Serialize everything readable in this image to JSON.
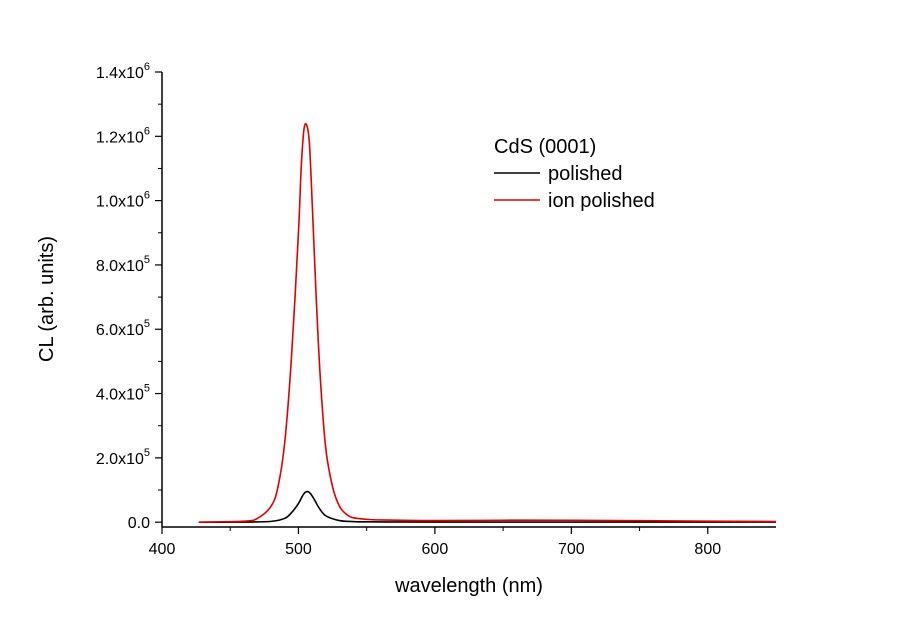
{
  "chart_data": {
    "type": "line",
    "title": "",
    "xlabel": "wavelength (nm)",
    "ylabel": "CL (arb. units)",
    "xlim": [
      400,
      850
    ],
    "ylim": [
      -15000,
      1400000
    ],
    "x_ticks": [
      400,
      500,
      600,
      700,
      800
    ],
    "x_tick_labels": [
      "400",
      "500",
      "600",
      "700",
      "800"
    ],
    "y_ticks": [
      0,
      200000,
      400000,
      600000,
      800000,
      1000000,
      1200000,
      1400000
    ],
    "y_tick_labels": [
      {
        "mantissa": "0.0",
        "exponent": ""
      },
      {
        "mantissa": "2.0x10",
        "exponent": "5"
      },
      {
        "mantissa": "4.0x10",
        "exponent": "5"
      },
      {
        "mantissa": "6.0x10",
        "exponent": "5"
      },
      {
        "mantissa": "8.0x10",
        "exponent": "5"
      },
      {
        "mantissa": "1.0x10",
        "exponent": "6"
      },
      {
        "mantissa": "1.2x10",
        "exponent": "6"
      },
      {
        "mantissa": "1.4x10",
        "exponent": "6"
      }
    ],
    "grid": false,
    "legend": {
      "title": "CdS (0001)",
      "position": "top-right"
    },
    "series": [
      {
        "name": "polished",
        "color": "#000000",
        "x": [
          427,
          460,
          480,
          490,
          495,
          500,
          503,
          505,
          507,
          509,
          512,
          515,
          520,
          530,
          540,
          550,
          600,
          700,
          800,
          850
        ],
        "y": [
          0,
          300,
          2500,
          12000,
          30000,
          58000,
          82000,
          93000,
          95000,
          88000,
          68000,
          45000,
          20000,
          5000,
          2000,
          1000,
          500,
          300,
          200,
          200
        ]
      },
      {
        "name": "ion polished",
        "color": "#e00000",
        "x": [
          427,
          460,
          470,
          480,
          485,
          490,
          495,
          500,
          502,
          504,
          506,
          508,
          510,
          513,
          516,
          520,
          525,
          530,
          535,
          540,
          550,
          560,
          600,
          650,
          700,
          800,
          850
        ],
        "y": [
          0,
          3000,
          12000,
          50000,
          110000,
          250000,
          520000,
          900000,
          1100000,
          1220000,
          1235000,
          1180000,
          1000000,
          700000,
          450000,
          230000,
          110000,
          50000,
          25000,
          14000,
          9000,
          7000,
          5000,
          6000,
          6000,
          3000,
          2000
        ]
      }
    ]
  }
}
